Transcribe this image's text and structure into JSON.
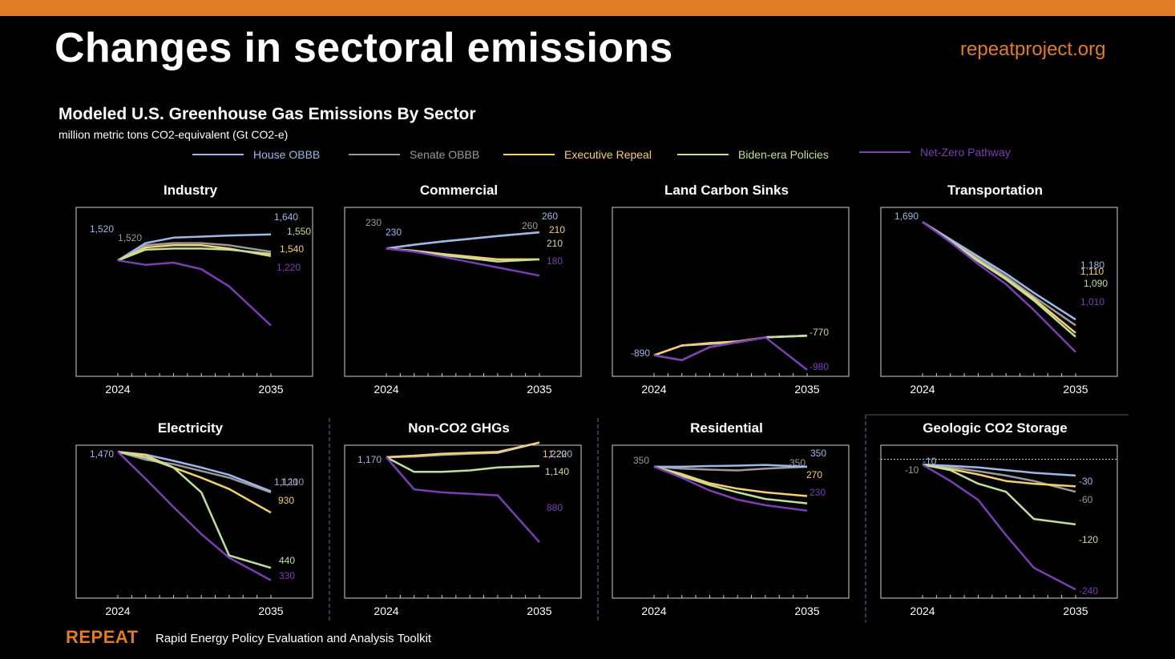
{
  "header": {
    "title": "Changes in sectoral emissions",
    "site": "repeatproject.org"
  },
  "footer": {
    "logo": "REPEAT",
    "tagline": "Rapid Energy Policy Evaluation and Analysis Toolkit"
  },
  "colors": {
    "accent": "#e07b28"
  },
  "chart_meta": {
    "title": "Modeled U.S. Greenhouse Gas Emissions By Sector",
    "subtitle": "million metric tons CO2-equivalent (Gt CO2-e)",
    "legend": [
      {
        "name": "House OBBB",
        "color": "#9db8e8"
      },
      {
        "name": "Senate OBBB",
        "color": "#9a9a9a"
      },
      {
        "name": "Executive Repeal",
        "color": "#f5cf72"
      },
      {
        "name": "Biden-era Policies",
        "color": "#c3df9c"
      },
      {
        "name": "Net-Zero Pathway",
        "color": "#7a3fb3"
      }
    ]
  },
  "chart_data": [
    {
      "type": "line",
      "title": "Industry",
      "x": [
        2024,
        2026,
        2028,
        2030,
        2032,
        2035
      ],
      "ylim": [
        1000,
        1750
      ],
      "xticks": [
        "2024",
        "2035"
      ],
      "series": [
        {
          "name": "House OBBB",
          "values": [
            1520,
            1600,
            1625,
            1630,
            1635,
            1640
          ]
        },
        {
          "name": "Senate OBBB",
          "values": [
            1520,
            1590,
            1600,
            1600,
            1590,
            1560
          ]
        },
        {
          "name": "Executive Repeal",
          "values": [
            1520,
            1580,
            1590,
            1590,
            1575,
            1540
          ]
        },
        {
          "name": "Biden-era Policies",
          "values": [
            1520,
            1570,
            1575,
            1575,
            1570,
            1550
          ]
        },
        {
          "name": "Net-Zero Pathway",
          "values": [
            1520,
            1500,
            1510,
            1480,
            1400,
            1220
          ]
        }
      ],
      "labels": [
        {
          "text": "1,520",
          "color": "#9db8e8"
        },
        {
          "text": "1,520",
          "color": "#9a9a9a"
        },
        {
          "text": "1,640",
          "color": "#9db8e8"
        },
        {
          "text": "1,550",
          "color": "#c3df9c"
        },
        {
          "text": "1,540",
          "color": "#f5cf72"
        },
        {
          "text": "1,220",
          "color": "#7a3fb3"
        }
      ]
    },
    {
      "type": "line",
      "title": "Commercial",
      "x": [
        2024,
        2026,
        2028,
        2030,
        2032,
        2035
      ],
      "ylim": [
        0,
        300
      ],
      "xticks": [
        "2024",
        "2035"
      ],
      "series": [
        {
          "name": "House OBBB",
          "values": [
            230,
            237,
            243,
            248,
            253,
            260
          ]
        },
        {
          "name": "Senate OBBB",
          "values": [
            230,
            237,
            243,
            248,
            253,
            260
          ]
        },
        {
          "name": "Executive Repeal",
          "values": [
            230,
            226,
            220,
            215,
            210,
            210
          ]
        },
        {
          "name": "Biden-era Policies",
          "values": [
            230,
            225,
            218,
            212,
            206,
            210
          ]
        },
        {
          "name": "Net-Zero Pathway",
          "values": [
            230,
            224,
            215,
            205,
            195,
            180
          ]
        }
      ],
      "labels": [
        {
          "text": "230",
          "color": "#9a9a9a"
        },
        {
          "text": "230",
          "color": "#9db8e8"
        },
        {
          "text": "260",
          "color": "#9db8e8"
        },
        {
          "text": "260",
          "color": "#9a9a9a"
        },
        {
          "text": "210",
          "color": "#f5cf72"
        },
        {
          "text": "210",
          "color": "#c3df9c"
        },
        {
          "text": "180",
          "color": "#7a3fb3"
        }
      ]
    },
    {
      "type": "line",
      "title": "Land Carbon Sinks",
      "x": [
        2024,
        2026,
        2028,
        2030,
        2032,
        2035
      ],
      "ylim": [
        -1000,
        0
      ],
      "xticks": [
        "2024",
        "2035"
      ],
      "series": [
        {
          "name": "House OBBB",
          "values": [
            -890,
            -830,
            -820,
            -810,
            -780,
            -770
          ]
        },
        {
          "name": "Senate OBBB",
          "values": [
            -890,
            -830,
            -820,
            -810,
            -780,
            -770
          ]
        },
        {
          "name": "Executive Repeal",
          "values": [
            -890,
            -830,
            -815,
            -805,
            -780,
            -770
          ]
        },
        {
          "name": "Biden-era Policies",
          "values": [
            -890,
            -920,
            -840,
            -810,
            -780,
            -770
          ]
        },
        {
          "name": "Net-Zero Pathway",
          "values": [
            -890,
            -920,
            -840,
            -810,
            -780,
            -980
          ]
        }
      ],
      "labels": [
        {
          "text": "-890",
          "color": "#9db8e8"
        },
        {
          "text": "-770",
          "color": "#c3df9c"
        },
        {
          "text": "-980",
          "color": "#7a3fb3"
        }
      ]
    },
    {
      "type": "line",
      "title": "Transportation",
      "x": [
        2024,
        2026,
        2028,
        2030,
        2032,
        2035
      ],
      "ylim": [
        900,
        1750
      ],
      "xticks": [
        "2024",
        "2035"
      ],
      "series": [
        {
          "name": "House OBBB",
          "values": [
            1690,
            1600,
            1510,
            1420,
            1320,
            1180
          ]
        },
        {
          "name": "Senate OBBB",
          "values": [
            1690,
            1595,
            1500,
            1405,
            1300,
            1150
          ]
        },
        {
          "name": "Executive Repeal",
          "values": [
            1690,
            1590,
            1490,
            1395,
            1290,
            1110
          ]
        },
        {
          "name": "Biden-era Policies",
          "values": [
            1690,
            1590,
            1485,
            1390,
            1280,
            1090
          ]
        },
        {
          "name": "Net-Zero Pathway",
          "values": [
            1690,
            1585,
            1470,
            1365,
            1230,
            1010
          ]
        }
      ],
      "labels": [
        {
          "text": "1,690",
          "color": "#9db8e8"
        },
        {
          "text": "1,180",
          "color": "#9db8e8"
        },
        {
          "text": "1,110",
          "color": "#f5cf72"
        },
        {
          "text": "1,090",
          "color": "#c3df9c"
        },
        {
          "text": "1,010",
          "color": "#7a3fb3"
        }
      ]
    },
    {
      "type": "line",
      "title": "Electricity",
      "x": [
        2024,
        2026,
        2028,
        2030,
        2032,
        2035
      ],
      "ylim": [
        200,
        1500
      ],
      "xticks": [
        "2024",
        "2035"
      ],
      "series": [
        {
          "name": "House OBBB",
          "values": [
            1470,
            1445,
            1390,
            1330,
            1265,
            1120
          ]
        },
        {
          "name": "Senate OBBB",
          "values": [
            1470,
            1400,
            1360,
            1300,
            1240,
            1110
          ]
        },
        {
          "name": "Executive Repeal",
          "values": [
            1470,
            1440,
            1330,
            1240,
            1140,
            930
          ]
        },
        {
          "name": "Biden-era Policies",
          "values": [
            1470,
            1420,
            1330,
            1110,
            550,
            440
          ]
        },
        {
          "name": "Net-Zero Pathway",
          "values": [
            1470,
            1230,
            980,
            740,
            530,
            330
          ]
        }
      ],
      "labels": [
        {
          "text": "1,470",
          "color": "#9db8e8"
        },
        {
          "text": "1,120",
          "color": "#9db8e8"
        },
        {
          "text": "1,110",
          "color": "#9a9a9a"
        },
        {
          "text": "930",
          "color": "#f5cf72"
        },
        {
          "text": "440",
          "color": "#c3df9c"
        },
        {
          "text": "330",
          "color": "#7a3fb3"
        }
      ]
    },
    {
      "type": "line",
      "title": "Non-CO2 GHGs",
      "x": [
        2024,
        2026,
        2028,
        2030,
        2032,
        2035
      ],
      "ylim": [
        700,
        1200
      ],
      "xticks": [
        "2024",
        "2035"
      ],
      "series": [
        {
          "name": "House OBBB",
          "values": [
            1170,
            1175,
            1180,
            1185,
            1185,
            1220
          ]
        },
        {
          "name": "Senate OBBB",
          "values": [
            1170,
            1172,
            1178,
            1182,
            1185,
            1220
          ]
        },
        {
          "name": "Executive Repeal",
          "values": [
            1170,
            1175,
            1182,
            1185,
            1188,
            1220
          ]
        },
        {
          "name": "Biden-era Policies",
          "values": [
            1170,
            1120,
            1120,
            1125,
            1135,
            1140
          ]
        },
        {
          "name": "Net-Zero Pathway",
          "values": [
            1170,
            1060,
            1050,
            1045,
            1040,
            880
          ]
        }
      ],
      "labels": [
        {
          "text": "1,170",
          "color": "#9db8e8"
        },
        {
          "text": "1,220",
          "color": "#f5cf72"
        },
        {
          "text": "1,220",
          "color": "#9db8e8"
        },
        {
          "text": "1,140",
          "color": "#c3df9c"
        },
        {
          "text": "880",
          "color": "#7a3fb3"
        }
      ]
    },
    {
      "type": "line",
      "title": "Residential",
      "x": [
        2024,
        2026,
        2028,
        2030,
        2032,
        2035
      ],
      "ylim": [
        0,
        400
      ],
      "xticks": [
        "2024",
        "2035"
      ],
      "series": [
        {
          "name": "House OBBB",
          "values": [
            350,
            350,
            352,
            353,
            355,
            350
          ]
        },
        {
          "name": "Senate OBBB",
          "values": [
            350,
            345,
            342,
            340,
            345,
            350
          ]
        },
        {
          "name": "Executive Repeal",
          "values": [
            350,
            330,
            305,
            290,
            280,
            270
          ]
        },
        {
          "name": "Biden-era Policies",
          "values": [
            350,
            325,
            300,
            280,
            262,
            250
          ]
        },
        {
          "name": "Net-Zero Pathway",
          "values": [
            350,
            320,
            285,
            260,
            245,
            230
          ]
        }
      ],
      "labels": [
        {
          "text": "350",
          "color": "#9a9a9a"
        },
        {
          "text": "350",
          "color": "#9a9a9a"
        },
        {
          "text": "350",
          "color": "#9db8e8"
        },
        {
          "text": "270",
          "color": "#f5cf72"
        },
        {
          "text": "230",
          "color": "#7a3fb3"
        }
      ]
    },
    {
      "type": "line",
      "title": "Geologic CO2 Storage",
      "x": [
        2024,
        2026,
        2028,
        2030,
        2032,
        2035
      ],
      "ylim": [
        -250,
        20
      ],
      "xticks": [
        "2024",
        "2035"
      ],
      "series": [
        {
          "name": "House OBBB",
          "values": [
            -10,
            -12,
            -15,
            -20,
            -25,
            -30
          ]
        },
        {
          "name": "Senate OBBB",
          "values": [
            -10,
            -15,
            -22,
            -30,
            -40,
            -60
          ]
        },
        {
          "name": "Executive Repeal",
          "values": [
            -10,
            -18,
            -28,
            -40,
            -45,
            -50
          ]
        },
        {
          "name": "Biden-era Policies",
          "values": [
            -10,
            -20,
            -45,
            -60,
            -110,
            -120
          ]
        },
        {
          "name": "Net-Zero Pathway",
          "values": [
            -10,
            -40,
            -75,
            -140,
            -200,
            -240
          ]
        }
      ],
      "labels": [
        {
          "text": "-10",
          "color": "#9db8e8"
        },
        {
          "text": "-10",
          "color": "#9a9a9a"
        },
        {
          "text": "-30",
          "color": "#9db8e8"
        },
        {
          "text": "-60",
          "color": "#9a9a9a"
        },
        {
          "text": "-120",
          "color": "#c3df9c"
        },
        {
          "text": "-240",
          "color": "#7a3fb3"
        }
      ]
    }
  ]
}
